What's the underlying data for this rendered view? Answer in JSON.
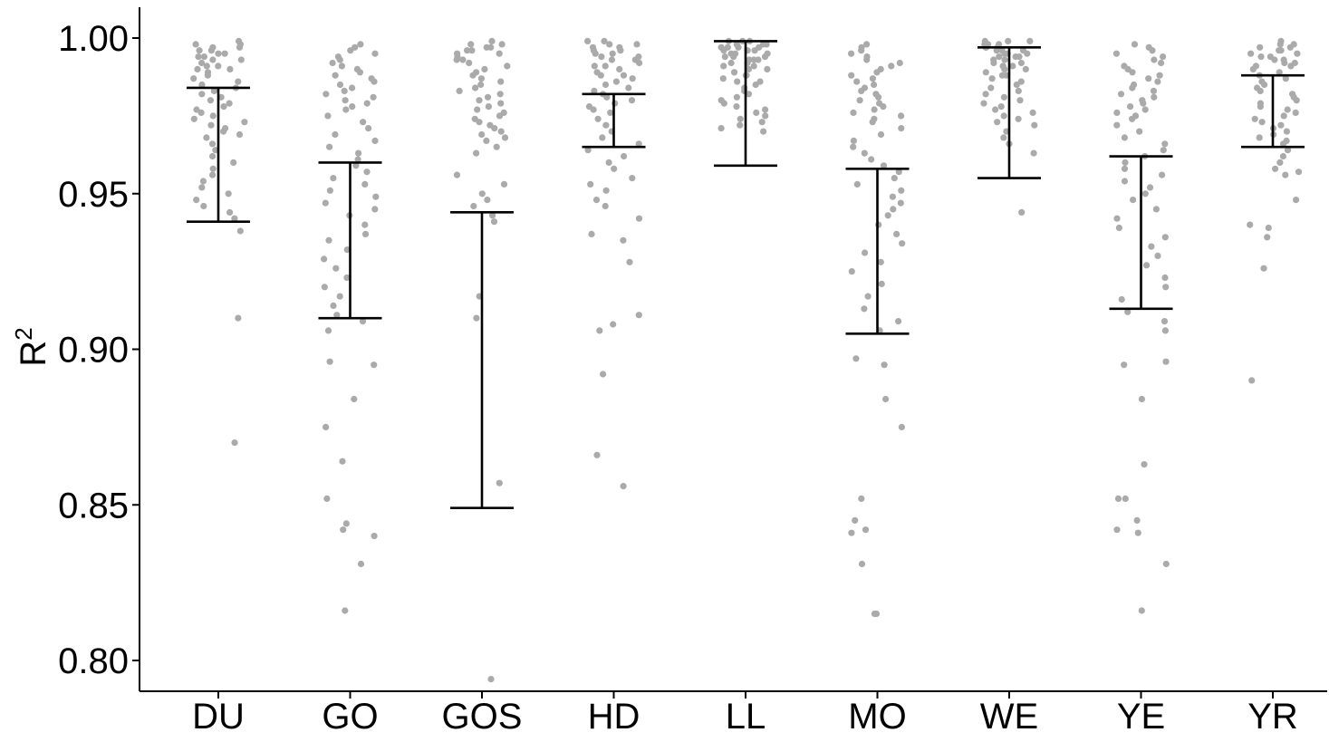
{
  "chart_data": {
    "type": "scatter",
    "title": "",
    "xlabel": "",
    "ylabel": "R",
    "ylabel_superscript": "2",
    "ylim": [
      0.79,
      1.01
    ],
    "yticks": [
      0.8,
      0.85,
      0.9,
      0.95,
      1.0
    ],
    "ytick_labels": [
      "0.80",
      "0.85",
      "0.90",
      "0.95",
      "1.00"
    ],
    "categories": [
      "DU",
      "GO",
      "GOS",
      "HD",
      "LL",
      "MO",
      "WE",
      "YE",
      "YR"
    ],
    "point_color": "#aaaaaa",
    "errorbar_color": "#000000",
    "grid": false,
    "legend": "none",
    "error_bars": [
      {
        "category": "DU",
        "low": 0.941,
        "high": 0.984
      },
      {
        "category": "GO",
        "low": 0.91,
        "high": 0.96
      },
      {
        "category": "GOS",
        "low": 0.849,
        "high": 0.944
      },
      {
        "category": "HD",
        "low": 0.965,
        "high": 0.982
      },
      {
        "category": "LL",
        "low": 0.959,
        "high": 0.999
      },
      {
        "category": "MO",
        "low": 0.905,
        "high": 0.958
      },
      {
        "category": "WE",
        "low": 0.955,
        "high": 0.997
      },
      {
        "category": "YE",
        "low": 0.913,
        "high": 0.962
      },
      {
        "category": "YR",
        "low": 0.965,
        "high": 0.988
      }
    ],
    "series": [
      {
        "category": "DU",
        "values": [
          0.999,
          0.998,
          0.998,
          0.997,
          0.997,
          0.996,
          0.996,
          0.995,
          0.995,
          0.994,
          0.994,
          0.993,
          0.993,
          0.992,
          0.991,
          0.991,
          0.99,
          0.99,
          0.989,
          0.988,
          0.987,
          0.986,
          0.985,
          0.984,
          0.983,
          0.982,
          0.981,
          0.98,
          0.979,
          0.978,
          0.977,
          0.976,
          0.975,
          0.974,
          0.973,
          0.972,
          0.971,
          0.97,
          0.969,
          0.968,
          0.966,
          0.964,
          0.962,
          0.96,
          0.958,
          0.956,
          0.954,
          0.952,
          0.95,
          0.948,
          0.946,
          0.944,
          0.942,
          0.938,
          0.91,
          0.87
        ]
      },
      {
        "category": "GO",
        "values": [
          0.998,
          0.997,
          0.996,
          0.995,
          0.994,
          0.993,
          0.992,
          0.991,
          0.99,
          0.989,
          0.988,
          0.987,
          0.986,
          0.985,
          0.984,
          0.983,
          0.982,
          0.981,
          0.98,
          0.979,
          0.978,
          0.977,
          0.975,
          0.973,
          0.971,
          0.969,
          0.967,
          0.965,
          0.963,
          0.961,
          0.959,
          0.957,
          0.955,
          0.953,
          0.951,
          0.949,
          0.947,
          0.945,
          0.943,
          0.94,
          0.937,
          0.935,
          0.932,
          0.929,
          0.926,
          0.923,
          0.92,
          0.917,
          0.914,
          0.911,
          0.909,
          0.906,
          0.896,
          0.895,
          0.884,
          0.875,
          0.864,
          0.852,
          0.844,
          0.842,
          0.84,
          0.831,
          0.816
        ]
      },
      {
        "category": "GOS",
        "values": [
          0.999,
          0.998,
          0.998,
          0.997,
          0.997,
          0.996,
          0.996,
          0.995,
          0.995,
          0.994,
          0.993,
          0.993,
          0.992,
          0.991,
          0.99,
          0.989,
          0.988,
          0.987,
          0.986,
          0.985,
          0.984,
          0.983,
          0.982,
          0.981,
          0.98,
          0.979,
          0.978,
          0.977,
          0.976,
          0.975,
          0.974,
          0.973,
          0.972,
          0.971,
          0.97,
          0.969,
          0.968,
          0.967,
          0.965,
          0.963,
          0.956,
          0.953,
          0.95,
          0.948,
          0.946,
          0.943,
          0.941,
          0.917,
          0.91,
          0.857,
          0.794
        ]
      },
      {
        "category": "HD",
        "values": [
          0.999,
          0.999,
          0.998,
          0.998,
          0.997,
          0.997,
          0.996,
          0.996,
          0.995,
          0.995,
          0.994,
          0.994,
          0.993,
          0.993,
          0.992,
          0.991,
          0.991,
          0.99,
          0.989,
          0.988,
          0.988,
          0.987,
          0.986,
          0.985,
          0.984,
          0.983,
          0.982,
          0.981,
          0.98,
          0.979,
          0.978,
          0.977,
          0.976,
          0.974,
          0.972,
          0.97,
          0.968,
          0.966,
          0.964,
          0.962,
          0.96,
          0.958,
          0.955,
          0.953,
          0.951,
          0.948,
          0.946,
          0.942,
          0.937,
          0.935,
          0.928,
          0.911,
          0.908,
          0.906,
          0.892,
          0.866,
          0.856
        ]
      },
      {
        "category": "LL",
        "values": [
          0.999,
          0.999,
          0.999,
          0.998,
          0.998,
          0.998,
          0.998,
          0.997,
          0.997,
          0.997,
          0.997,
          0.996,
          0.996,
          0.996,
          0.995,
          0.995,
          0.995,
          0.994,
          0.994,
          0.994,
          0.993,
          0.993,
          0.993,
          0.992,
          0.992,
          0.991,
          0.991,
          0.99,
          0.99,
          0.989,
          0.989,
          0.988,
          0.988,
          0.987,
          0.986,
          0.986,
          0.985,
          0.984,
          0.983,
          0.982,
          0.981,
          0.98,
          0.979,
          0.978,
          0.977,
          0.976,
          0.975,
          0.974,
          0.973,
          0.972,
          0.971,
          0.97
        ]
      },
      {
        "category": "MO",
        "values": [
          0.998,
          0.997,
          0.996,
          0.995,
          0.994,
          0.993,
          0.992,
          0.991,
          0.99,
          0.989,
          0.988,
          0.987,
          0.986,
          0.985,
          0.984,
          0.983,
          0.982,
          0.981,
          0.98,
          0.979,
          0.978,
          0.977,
          0.976,
          0.975,
          0.974,
          0.973,
          0.971,
          0.969,
          0.967,
          0.965,
          0.963,
          0.961,
          0.959,
          0.957,
          0.955,
          0.953,
          0.951,
          0.949,
          0.947,
          0.945,
          0.943,
          0.94,
          0.937,
          0.934,
          0.931,
          0.928,
          0.925,
          0.921,
          0.917,
          0.913,
          0.909,
          0.906,
          0.897,
          0.895,
          0.884,
          0.875,
          0.852,
          0.845,
          0.842,
          0.841,
          0.831,
          0.815,
          0.815
        ]
      },
      {
        "category": "WE",
        "values": [
          0.999,
          0.999,
          0.999,
          0.998,
          0.998,
          0.998,
          0.998,
          0.997,
          0.997,
          0.997,
          0.997,
          0.996,
          0.996,
          0.996,
          0.995,
          0.995,
          0.995,
          0.994,
          0.994,
          0.994,
          0.993,
          0.993,
          0.992,
          0.992,
          0.991,
          0.991,
          0.99,
          0.99,
          0.989,
          0.988,
          0.988,
          0.987,
          0.986,
          0.985,
          0.984,
          0.983,
          0.982,
          0.981,
          0.98,
          0.979,
          0.978,
          0.977,
          0.976,
          0.975,
          0.974,
          0.973,
          0.972,
          0.97,
          0.968,
          0.966,
          0.963,
          0.944
        ]
      },
      {
        "category": "YE",
        "values": [
          0.998,
          0.997,
          0.996,
          0.995,
          0.994,
          0.993,
          0.992,
          0.991,
          0.99,
          0.989,
          0.988,
          0.987,
          0.986,
          0.985,
          0.984,
          0.983,
          0.982,
          0.981,
          0.98,
          0.979,
          0.978,
          0.977,
          0.976,
          0.975,
          0.974,
          0.972,
          0.97,
          0.968,
          0.966,
          0.964,
          0.962,
          0.96,
          0.958,
          0.956,
          0.954,
          0.952,
          0.95,
          0.948,
          0.945,
          0.942,
          0.939,
          0.936,
          0.933,
          0.93,
          0.927,
          0.923,
          0.92,
          0.916,
          0.912,
          0.909,
          0.906,
          0.896,
          0.895,
          0.884,
          0.863,
          0.852,
          0.852,
          0.845,
          0.842,
          0.841,
          0.831,
          0.816
        ]
      },
      {
        "category": "YR",
        "values": [
          0.999,
          0.998,
          0.998,
          0.997,
          0.997,
          0.996,
          0.996,
          0.995,
          0.995,
          0.994,
          0.994,
          0.993,
          0.993,
          0.992,
          0.992,
          0.991,
          0.991,
          0.99,
          0.989,
          0.988,
          0.987,
          0.986,
          0.985,
          0.984,
          0.983,
          0.982,
          0.981,
          0.98,
          0.979,
          0.978,
          0.977,
          0.976,
          0.975,
          0.974,
          0.973,
          0.972,
          0.971,
          0.97,
          0.969,
          0.968,
          0.967,
          0.966,
          0.964,
          0.962,
          0.96,
          0.958,
          0.957,
          0.956,
          0.948,
          0.94,
          0.939,
          0.936,
          0.926,
          0.89
        ]
      }
    ]
  }
}
